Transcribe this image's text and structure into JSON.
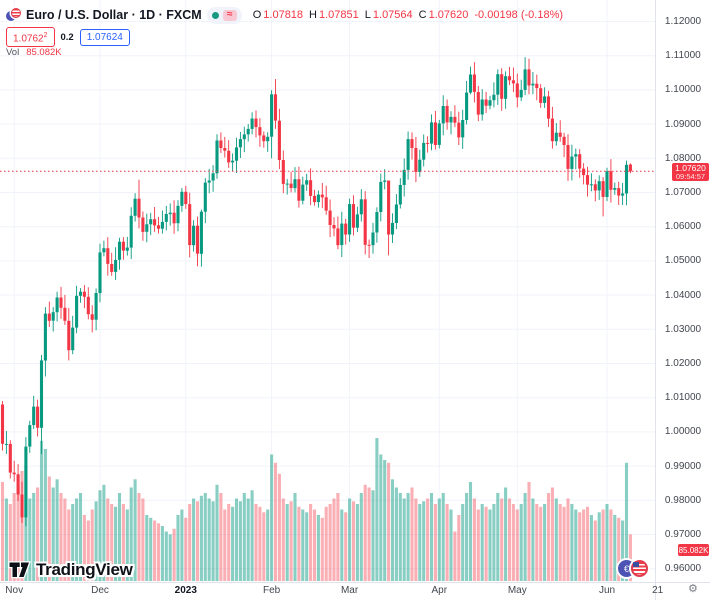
{
  "header": {
    "symbol_title": "Euro / U.S. Dollar · 1D · FXCM",
    "ohlc": {
      "o_label": "O",
      "o": "1.07818",
      "h_label": "H",
      "h": "1.07851",
      "l_label": "L",
      "l": "1.07564",
      "c_label": "C",
      "c": "1.07620",
      "change": "-0.00198 (-0.18%)"
    },
    "bid": "1.0762",
    "bid_sup": "2",
    "spread": "0.2",
    "ask": "1.07624",
    "vol_label": "Vol",
    "vol_value": "85.082K",
    "data_badge_glyph": "≈"
  },
  "watermark": "TradingView",
  "price_line": {
    "label": "1.07620",
    "countdown": "09:54:57"
  },
  "volume_label": "85.082K",
  "gear_glyph": "⚙",
  "eur_glyph": "€",
  "price_axis": {
    "labels": [
      "1.12000",
      "1.11000",
      "1.10000",
      "1.09000",
      "1.08000",
      "1.07000",
      "1.06000",
      "1.05000",
      "1.04000",
      "1.03000",
      "1.02000",
      "1.01000",
      "1.00000",
      "0.99000",
      "0.98000",
      "0.97000",
      "0.96000"
    ],
    "values": [
      1.12,
      1.11,
      1.1,
      1.09,
      1.08,
      1.07,
      1.06,
      1.05,
      1.04,
      1.03,
      1.02,
      1.01,
      1.0,
      0.99,
      0.98,
      0.97,
      0.96
    ]
  },
  "time_axis": {
    "labels": [
      {
        "text": "Nov",
        "idx": 3,
        "grid": true,
        "bold": false
      },
      {
        "text": "Dec",
        "idx": 25,
        "grid": true,
        "bold": false
      },
      {
        "text": "2023",
        "idx": 47,
        "grid": true,
        "bold": true
      },
      {
        "text": "Feb",
        "idx": 69,
        "grid": true,
        "bold": false
      },
      {
        "text": "Mar",
        "idx": 89,
        "grid": true,
        "bold": false
      },
      {
        "text": "Apr",
        "idx": 112,
        "grid": true,
        "bold": false
      },
      {
        "text": "May",
        "idx": 132,
        "grid": true,
        "bold": false
      },
      {
        "text": "Jun",
        "idx": 155,
        "grid": true,
        "bold": false
      },
      {
        "text": "21",
        "idx": 168,
        "grid": false,
        "bold": false
      }
    ]
  },
  "colors": {
    "up": "#089981",
    "down": "#f23645",
    "vol_up": "rgba(8,153,129,0.48)",
    "vol_down": "rgba(242,54,69,0.40)",
    "grid": "#f0f3fa",
    "axis_border": "#e0e3eb",
    "price_line": "#f23645"
  },
  "chart_data": {
    "type": "candlestick_with_volume",
    "symbol": "EUR/USD",
    "timeframe": "1D",
    "feed": "FXCM",
    "y_range": [
      0.96,
      1.12
    ],
    "x_labels": [
      "Nov",
      "Dec",
      "2023",
      "Feb",
      "Mar",
      "Apr",
      "May",
      "Jun",
      "21"
    ],
    "current_price": 1.0762,
    "first_open": 1.008,
    "closes": [
      0.9965,
      0.9965,
      0.9881,
      0.9876,
      0.9817,
      0.975,
      0.9957,
      1.002,
      1.0074,
      1.0012,
      1.0209,
      1.0346,
      1.0325,
      1.035,
      1.0393,
      1.0363,
      1.0325,
      1.0239,
      1.0305,
      1.0398,
      1.041,
      1.0395,
      1.0344,
      1.0328,
      1.0406,
      1.0525,
      1.0537,
      1.0491,
      1.0468,
      1.0503,
      1.0556,
      1.053,
      1.0539,
      1.0632,
      1.0682,
      1.0627,
      1.0585,
      1.0607,
      1.0622,
      1.0604,
      1.0594,
      1.0614,
      1.0637,
      1.0641,
      1.061,
      1.0661,
      1.0702,
      1.0666,
      1.0546,
      1.0603,
      1.0521,
      1.0644,
      1.0729,
      1.0735,
      1.0756,
      1.0852,
      1.083,
      1.0822,
      1.0788,
      1.0793,
      1.0832,
      1.0856,
      1.087,
      1.0886,
      1.0916,
      1.0891,
      1.0867,
      1.085,
      1.0863,
      1.0987,
      1.091,
      1.0795,
      1.0725,
      1.0726,
      1.0713,
      1.0739,
      1.0676,
      1.0723,
      1.0736,
      1.069,
      1.0672,
      1.0694,
      1.0686,
      1.0647,
      1.0605,
      1.0595,
      1.0546,
      1.0609,
      1.0577,
      1.0666,
      1.0597,
      1.0636,
      1.068,
      1.0547,
      1.0546,
      1.0583,
      1.0643,
      1.0731,
      1.0735,
      1.0577,
      1.0611,
      1.0665,
      1.0722,
      1.0766,
      1.0856,
      1.083,
      1.076,
      1.0796,
      1.0845,
      1.0843,
      1.0905,
      1.0839,
      1.0902,
      1.0953,
      1.0905,
      1.0921,
      1.0904,
      1.0861,
      1.0912,
      1.0992,
      1.1045,
      1.0994,
      1.0928,
      1.0972,
      1.0954,
      1.097,
      1.0986,
      1.1046,
      1.0974,
      1.104,
      1.1028,
      1.1019,
      1.0978,
      1.1,
      1.106,
      1.1013,
      1.1018,
      1.1005,
      1.0962,
      1.0981,
      1.0916,
      1.085,
      1.0875,
      1.0863,
      1.0839,
      1.0769,
      1.0805,
      1.0812,
      1.077,
      1.0751,
      1.0723,
      1.0724,
      1.0706,
      1.0733,
      1.0687,
      1.0762,
      1.0708,
      1.0713,
      1.0691,
      1.0697,
      1.0781,
      1.0762
    ],
    "volumes_k": [
      180,
      150,
      140,
      160,
      170,
      200,
      210,
      150,
      160,
      170,
      255,
      240,
      190,
      170,
      185,
      160,
      150,
      130,
      140,
      150,
      160,
      120,
      110,
      130,
      145,
      165,
      175,
      150,
      140,
      135,
      160,
      140,
      130,
      170,
      185,
      160,
      150,
      120,
      115,
      110,
      105,
      100,
      90,
      85,
      95,
      120,
      130,
      115,
      140,
      150,
      145,
      155,
      160,
      150,
      145,
      175,
      160,
      130,
      140,
      135,
      150,
      145,
      160,
      150,
      165,
      140,
      135,
      125,
      130,
      230,
      215,
      195,
      150,
      140,
      145,
      160,
      135,
      130,
      125,
      140,
      130,
      120,
      115,
      135,
      140,
      150,
      160,
      130,
      125,
      150,
      145,
      140,
      160,
      175,
      170,
      165,
      260,
      230,
      220,
      215,
      185,
      170,
      160,
      150,
      160,
      170,
      150,
      140,
      145,
      150,
      160,
      140,
      150,
      160,
      140,
      130,
      90,
      120,
      140,
      160,
      180,
      150,
      130,
      140,
      135,
      130,
      140,
      160,
      150,
      170,
      150,
      140,
      130,
      140,
      160,
      180,
      150,
      140,
      135,
      140,
      160,
      170,
      150,
      140,
      135,
      150,
      140,
      130,
      125,
      130,
      135,
      120,
      110,
      125,
      130,
      140,
      130,
      120,
      115,
      110,
      215,
      85
    ],
    "wick_overrides": {
      "10": [
        1.0225,
        0.9935
      ],
      "11": [
        1.0365,
        1.0162
      ],
      "35": [
        1.0737,
        1.0595
      ],
      "51": [
        1.065,
        1.0483
      ],
      "69": [
        1.0999,
        1.08
      ],
      "70": [
        1.1032,
        1.0886
      ],
      "99": [
        1.062,
        1.0516
      ],
      "120": [
        1.1068,
        1.0987
      ],
      "135": [
        1.1091,
        1.0987
      ],
      "154": [
        1.0745,
        1.063
      ]
    },
    "last_candle": {
      "open": 1.07818,
      "high": 1.07851,
      "low": 1.07564,
      "close": 1.0762
    }
  }
}
